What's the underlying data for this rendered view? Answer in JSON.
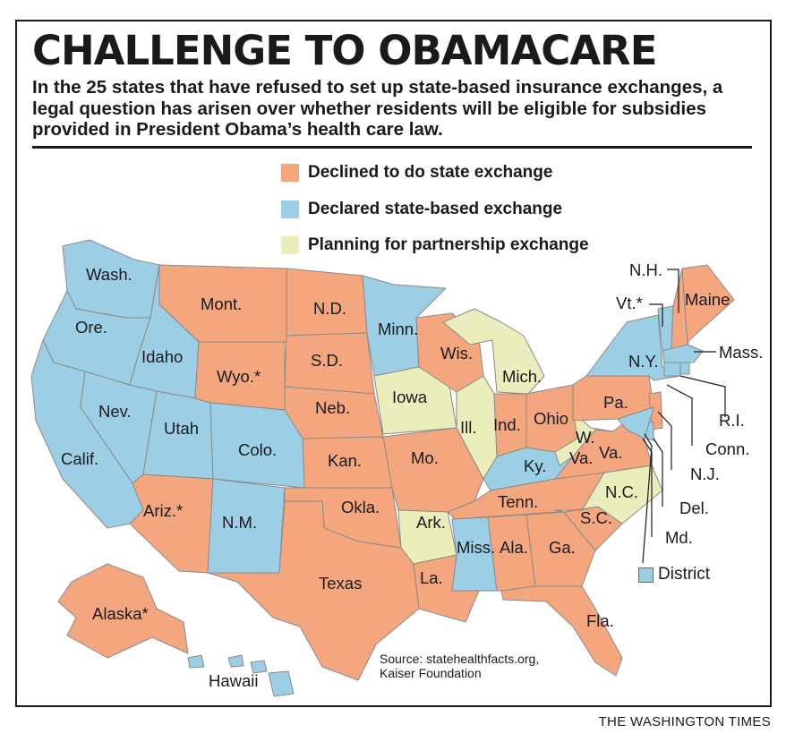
{
  "header": {
    "title": "CHALLENGE TO OBAMACARE",
    "subtitle": "In the 25 states that have refused to set up state-based insurance exchanges, a legal question has arisen over whether residents will be eligible for subsidies provided in President Obama’s health care law."
  },
  "legend": {
    "items": [
      {
        "label": "Declined to do state exchange",
        "color": "#f4a77e"
      },
      {
        "label": "Declared state-based exchange",
        "color": "#9ccfe6"
      },
      {
        "label": "Planning for partnership exchange",
        "color": "#ecedbd"
      }
    ]
  },
  "states": {
    "wa": "Wash.",
    "or": "Ore.",
    "id": "Idaho",
    "mt": "Mont.",
    "wy": "Wyo.*",
    "nd": "N.D.",
    "sd": "S.D.",
    "ne": "Neb.",
    "ks": "Kan.",
    "ok": "Okla.",
    "tx": "Texas",
    "ca": "Calif.",
    "nv": "Nev.",
    "ut": "Utah",
    "co": "Colo.",
    "az": "Ariz.*",
    "nm": "N.M.",
    "mn": "Minn.",
    "ia": "Iowa",
    "mo": "Mo.",
    "ar": "Ark.",
    "la": "La.",
    "wi": "Wis.",
    "il": "Ill.",
    "mi": "Mich.",
    "in": "Ind.",
    "oh": "Ohio",
    "ky": "Ky.",
    "tn": "Tenn.",
    "ms": "Miss.",
    "al": "Ala.",
    "ga": "Ga.",
    "fl": "Fla.",
    "sc": "S.C.",
    "nc": "N.C.",
    "va": "Va.",
    "wv_a": "W.",
    "wv_b": "Va.",
    "pa": "Pa.",
    "ny": "N.Y.",
    "me": "Maine",
    "ak": "Alaska*",
    "hi": "Hawaii"
  },
  "callouts": {
    "nh": "N.H.",
    "vt": "Vt.*",
    "ma": "Mass.",
    "ri": "R.I.",
    "ct": "Conn.",
    "nj": "N.J.",
    "de": "Del.",
    "md": "Md.",
    "dc": "District"
  },
  "source": {
    "line1": "Source: statehealthfacts.org,",
    "line2": "Kaiser Foundation"
  },
  "credit": "THE WASHINGTON TIMES"
}
